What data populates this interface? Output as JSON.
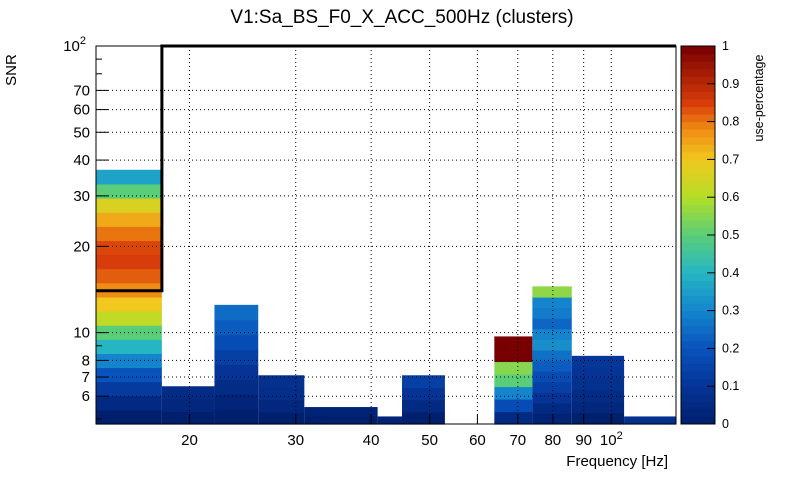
{
  "chart_data": {
    "type": "heatmap",
    "title": "V1:Sa_BS_F0_X_ACC_500Hz (clusters)",
    "xlabel": "Frequency [Hz]",
    "ylabel": "SNR",
    "zlabel": "use-percentage",
    "x_scale": "log",
    "y_scale": "log",
    "xlim": [
      14,
      128
    ],
    "ylim": [
      4.8,
      100
    ],
    "zlim": [
      0,
      1
    ],
    "grid": true,
    "x_ticks": [
      {
        "value": 20,
        "label": "20"
      },
      {
        "value": 30,
        "label": "30"
      },
      {
        "value": 40,
        "label": "40"
      },
      {
        "value": 50,
        "label": "50"
      },
      {
        "value": 60,
        "label": "60"
      },
      {
        "value": 70,
        "label": "70"
      },
      {
        "value": 80,
        "label": "80"
      },
      {
        "value": 90,
        "label": "90"
      },
      {
        "value": 100,
        "label": "10",
        "sup": "2"
      }
    ],
    "y_ticks": [
      {
        "value": 6,
        "label": "6"
      },
      {
        "value": 7,
        "label": "7"
      },
      {
        "value": 8,
        "label": "8"
      },
      {
        "value": 10,
        "label": "10"
      },
      {
        "value": 20,
        "label": "20"
      },
      {
        "value": 30,
        "label": "30"
      },
      {
        "value": 40,
        "label": "40"
      },
      {
        "value": 50,
        "label": "50"
      },
      {
        "value": 60,
        "label": "60"
      },
      {
        "value": 70,
        "label": "70"
      },
      {
        "value": 100,
        "label": "10",
        "sup": "2"
      }
    ],
    "z_ticks": [
      "0",
      "0.1",
      "0.2",
      "0.3",
      "0.4",
      "0.5",
      "0.6",
      "0.7",
      "0.8",
      "0.9",
      "1"
    ],
    "columns": [
      {
        "x0": 14,
        "x1": 18,
        "top": 37,
        "profile": [
          0.0,
          0.05,
          0.12,
          0.2,
          0.3,
          0.4,
          0.5,
          0.62,
          0.7,
          0.78,
          0.82,
          0.85,
          0.84,
          0.8,
          0.74,
          0.66,
          0.5,
          0.36
        ]
      },
      {
        "x0": 18,
        "x1": 22,
        "top": 6.5,
        "profile": [
          0.0,
          0.04,
          0.06
        ]
      },
      {
        "x0": 22,
        "x1": 26,
        "top": 12.5,
        "profile": [
          0.0,
          0.03,
          0.06,
          0.1,
          0.14,
          0.18,
          0.22,
          0.25
        ]
      },
      {
        "x0": 26,
        "x1": 31,
        "top": 7.1,
        "profile": [
          0.0,
          0.04,
          0.07,
          0.08
        ]
      },
      {
        "x0": 31,
        "x1": 41,
        "top": 5.5,
        "profile": [
          0.0,
          0.02
        ]
      },
      {
        "x0": 41,
        "x1": 45,
        "top": 5.1,
        "profile": [
          0.02
        ]
      },
      {
        "x0": 45,
        "x1": 53,
        "top": 7.1,
        "profile": [
          0.0,
          0.05,
          0.1,
          0.14
        ]
      },
      {
        "x0": 53,
        "x1": 64,
        "top": 0,
        "profile": []
      },
      {
        "x0": 64,
        "x1": 74,
        "top": 9.7,
        "profile": [
          0.05,
          0.18,
          0.3,
          0.5,
          0.55,
          1.0,
          1.0
        ]
      },
      {
        "x0": 74,
        "x1": 86,
        "top": 14.5,
        "profile": [
          0.02,
          0.05,
          0.1,
          0.14,
          0.18,
          0.22,
          0.26,
          0.32,
          0.3,
          0.24,
          0.28,
          0.3,
          0.56
        ]
      },
      {
        "x0": 86,
        "x1": 105,
        "top": 8.3,
        "profile": [
          0.0,
          0.04,
          0.06,
          0.08,
          0.1,
          0.11
        ]
      },
      {
        "x0": 105,
        "x1": 128,
        "top": 5.1,
        "profile": [
          0.08
        ]
      }
    ],
    "threshold_line": [
      [
        14,
        14
      ],
      [
        18,
        14
      ],
      [
        18,
        100
      ],
      [
        128,
        100
      ]
    ]
  }
}
